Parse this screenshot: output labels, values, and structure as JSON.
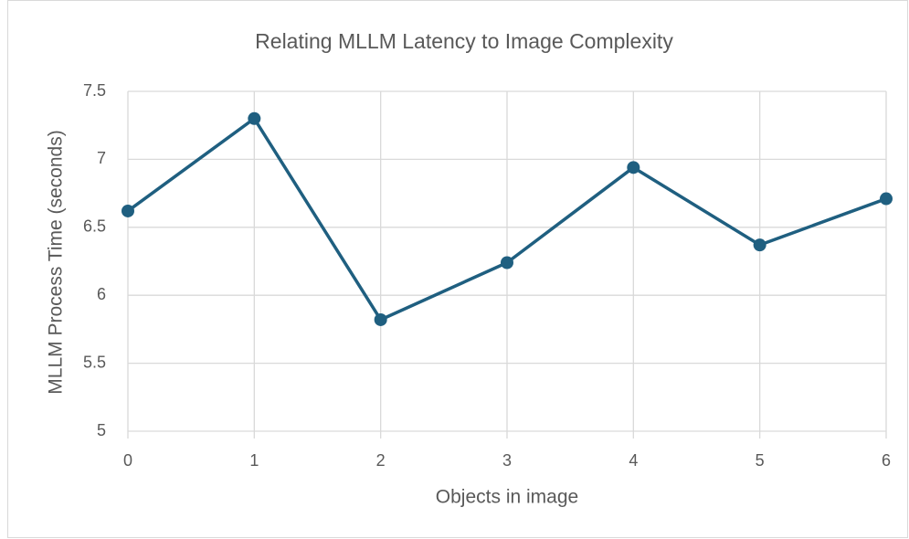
{
  "chart_data": {
    "type": "line",
    "title": "Relating  MLLM Latency to Image Complexity",
    "x_label": "Objects in image",
    "y_label": "MLLM Process Time (seconds)",
    "x": [
      0,
      1,
      2,
      3,
      4,
      5,
      6
    ],
    "series": [
      {
        "name": "MLLM Process Time",
        "color": "#1f5f80",
        "values": [
          6.62,
          7.3,
          5.82,
          6.24,
          6.94,
          6.37,
          6.71
        ]
      }
    ],
    "xlim": [
      0,
      6
    ],
    "xticks": [
      0,
      1,
      2,
      3,
      4,
      5,
      6
    ],
    "ylim": [
      5,
      7.5
    ],
    "yticks": [
      5,
      5.5,
      6,
      6.5,
      7,
      7.5
    ],
    "grid": true
  }
}
